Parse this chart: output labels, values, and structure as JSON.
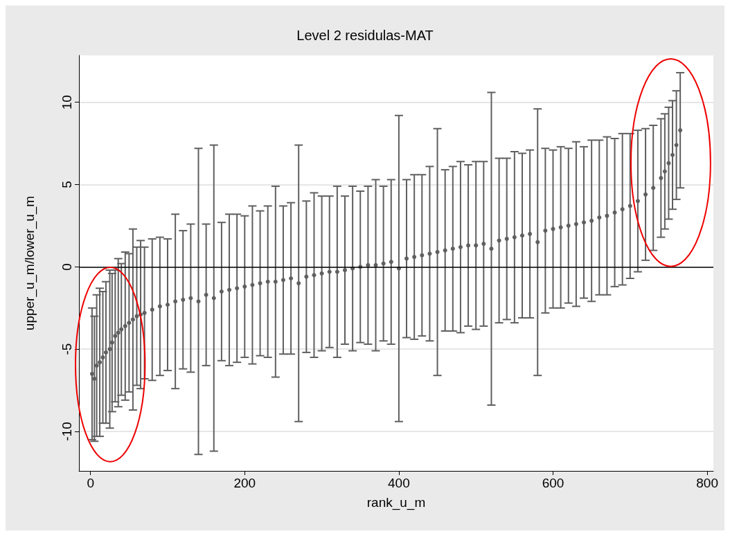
{
  "chart_data": {
    "type": "scatter",
    "title": "Level 2 residulas-MAT",
    "xlabel": "rank_u_m",
    "ylabel": "upper_u_m/lower_u_m",
    "xlim": [
      -15,
      808
    ],
    "xticks": [
      0,
      200,
      400,
      600,
      800
    ],
    "ylim": [
      -12.4,
      12.85
    ],
    "yticks": [
      -10,
      -5,
      0,
      5,
      10
    ],
    "grid": "y",
    "marker": "circle",
    "ref_lines": [
      {
        "axis": "y",
        "value": 0,
        "color": "#000000"
      }
    ],
    "series": [
      {
        "color": "#5f5f5f",
        "x": [
          2,
          5,
          8,
          12,
          16,
          20,
          25,
          28,
          32,
          36,
          40,
          45,
          50,
          55,
          60,
          65,
          70,
          80,
          90,
          100,
          110,
          120,
          130,
          140,
          150,
          160,
          170,
          180,
          190,
          200,
          210,
          220,
          230,
          240,
          250,
          260,
          270,
          280,
          290,
          300,
          310,
          320,
          330,
          340,
          350,
          360,
          370,
          380,
          390,
          400,
          410,
          420,
          430,
          440,
          450,
          460,
          470,
          480,
          490,
          500,
          510,
          520,
          530,
          540,
          550,
          560,
          570,
          580,
          590,
          600,
          610,
          620,
          630,
          640,
          650,
          660,
          670,
          680,
          690,
          700,
          710,
          720,
          730,
          740,
          745,
          750,
          755,
          760,
          765
        ],
        "values": [
          -6.5,
          -6.8,
          -6,
          -5.8,
          -5.5,
          -5.2,
          -5,
          -4.6,
          -4.2,
          -4,
          -3.8,
          -3.6,
          -3.4,
          -3.2,
          -3,
          -2.9,
          -2.8,
          -2.6,
          -2.4,
          -2.3,
          -2.1,
          -2,
          -1.9,
          -2.1,
          -1.7,
          -1.9,
          -1.5,
          -1.4,
          -1.3,
          -1.2,
          -1.1,
          -1,
          -0.9,
          -0.9,
          -0.8,
          -0.7,
          -1,
          -0.6,
          -0.5,
          -0.4,
          -0.3,
          -0.3,
          -0.2,
          -0.1,
          0,
          0.1,
          0.1,
          0.2,
          0.3,
          -0.1,
          0.5,
          0.6,
          0.7,
          0.8,
          0.9,
          1,
          1.1,
          1.2,
          1.3,
          1.3,
          1.4,
          1.1,
          1.6,
          1.7,
          1.8,
          1.9,
          2,
          1.5,
          2.2,
          2.3,
          2.4,
          2.5,
          2.6,
          2.7,
          2.8,
          3,
          3.1,
          3.3,
          3.5,
          3.7,
          4,
          4.4,
          4.8,
          5.4,
          5.8,
          6.3,
          6.8,
          7.4,
          8.3
        ],
        "errors": [
          4,
          3.8,
          4.3,
          4.5,
          4,
          4.3,
          4.8,
          4.2,
          4,
          4.5,
          4,
          4.5,
          4.2,
          5.5,
          4.2,
          4.5,
          4,
          4.3,
          4.2,
          4,
          5.3,
          4.2,
          4.5,
          9.3,
          4.3,
          9.3,
          4.2,
          4.6,
          4.5,
          4.3,
          4.8,
          4.4,
          4.6,
          5.8,
          4.5,
          4.6,
          8.4,
          4.6,
          5,
          4.7,
          4.6,
          5.2,
          4.5,
          5,
          4.6,
          4.8,
          5.2,
          4.7,
          5,
          9.3,
          4.8,
          5,
          4.9,
          5.3,
          7.5,
          4.9,
          5,
          5.2,
          4.9,
          5.1,
          5,
          9.5,
          5,
          4.9,
          5.2,
          5,
          5.1,
          8.1,
          5,
          4.8,
          4.9,
          4.7,
          5,
          4.6,
          4.9,
          4.7,
          4.8,
          4.5,
          4.6,
          4.4,
          4.3,
          4,
          3.8,
          3.6,
          3.5,
          3.4,
          3.3,
          3.3,
          3.5
        ]
      }
    ]
  }
}
